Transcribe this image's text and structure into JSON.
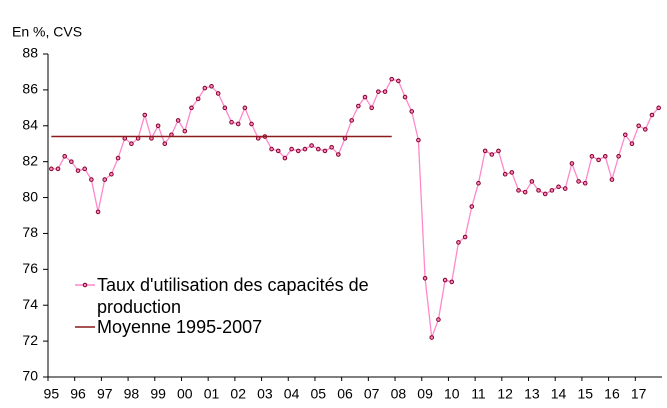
{
  "chart_data": {
    "type": "line",
    "y_label": "En %, CVS",
    "categories": [
      "95",
      null,
      null,
      null,
      "96",
      null,
      null,
      null,
      "97",
      null,
      null,
      null,
      "98",
      null,
      null,
      null,
      "99",
      null,
      null,
      null,
      "00",
      null,
      null,
      null,
      "01",
      null,
      null,
      null,
      "02",
      null,
      null,
      null,
      "03",
      null,
      null,
      null,
      "04",
      null,
      null,
      null,
      "05",
      null,
      null,
      null,
      "06",
      null,
      null,
      null,
      "07",
      null,
      null,
      null,
      "08",
      null,
      null,
      null,
      "09",
      null,
      null,
      null,
      "10",
      null,
      null,
      null,
      "11",
      null,
      null,
      null,
      "12",
      null,
      null,
      null,
      "13",
      null,
      null,
      null,
      "14",
      null,
      null,
      null,
      "15",
      null,
      null,
      null,
      "16",
      null,
      null,
      null,
      "17",
      null,
      null,
      null
    ],
    "series": [
      {
        "name": "Taux d'utilisation des capacités de production",
        "color": "#ff88cc",
        "marker_color": "#800020",
        "marker": true,
        "values": [
          81.6,
          81.6,
          82.3,
          82.0,
          81.5,
          81.6,
          81.0,
          79.2,
          81.0,
          81.3,
          82.2,
          83.3,
          83.0,
          83.3,
          84.6,
          83.3,
          84.0,
          83.0,
          83.5,
          84.3,
          83.7,
          85.0,
          85.5,
          86.1,
          86.2,
          85.8,
          85.0,
          84.2,
          84.1,
          85.0,
          84.1,
          83.3,
          83.4,
          82.7,
          82.6,
          82.2,
          82.7,
          82.6,
          82.7,
          82.9,
          82.7,
          82.6,
          82.8,
          82.4,
          83.3,
          84.3,
          85.1,
          85.6,
          85.0,
          85.9,
          85.9,
          86.6,
          86.5,
          85.6,
          84.8,
          83.2,
          75.5,
          72.2,
          73.2,
          75.4,
          75.3,
          77.5,
          77.8,
          79.5,
          80.8,
          82.6,
          82.4,
          82.6,
          81.3,
          81.4,
          80.4,
          80.3,
          80.9,
          80.4,
          80.2,
          80.4,
          80.6,
          80.5,
          81.9,
          80.9,
          80.8,
          82.3,
          82.1,
          82.3,
          81.0,
          82.3,
          83.5,
          83.0,
          84.0,
          83.8,
          84.6,
          85.0
        ]
      },
      {
        "name": "Moyenne 1995-2007",
        "color": "#8b1a1a",
        "marker": false,
        "values": [
          83.4,
          83.4,
          83.4,
          83.4,
          83.4,
          83.4,
          83.4,
          83.4,
          83.4,
          83.4,
          83.4,
          83.4,
          83.4,
          83.4,
          83.4,
          83.4,
          83.4,
          83.4,
          83.4,
          83.4,
          83.4,
          83.4,
          83.4,
          83.4,
          83.4,
          83.4,
          83.4,
          83.4,
          83.4,
          83.4,
          83.4,
          83.4,
          83.4,
          83.4,
          83.4,
          83.4,
          83.4,
          83.4,
          83.4,
          83.4,
          83.4,
          83.4,
          83.4,
          83.4,
          83.4,
          83.4,
          83.4,
          83.4,
          83.4,
          83.4,
          83.4,
          83.4,
          null,
          null,
          null,
          null,
          null,
          null,
          null,
          null,
          null,
          null,
          null,
          null,
          null,
          null,
          null,
          null,
          null,
          null,
          null,
          null,
          null,
          null,
          null,
          null,
          null,
          null,
          null,
          null,
          null,
          null,
          null,
          null,
          null,
          null,
          null,
          null,
          null,
          null,
          null,
          null
        ]
      }
    ],
    "ylim": [
      70,
      88
    ],
    "yticks": [
      70,
      72,
      74,
      76,
      78,
      80,
      82,
      84,
      86,
      88
    ],
    "grid": false,
    "legend": "lower left"
  }
}
